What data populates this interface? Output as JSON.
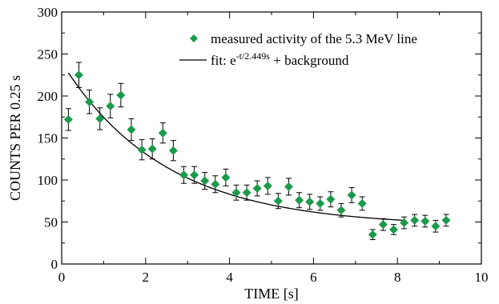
{
  "chart_data": {
    "type": "scatter",
    "xlabel": "TIME [s]",
    "ylabel": "COUNTS PER 0.25 s",
    "xlim": [
      0,
      10
    ],
    "ylim": [
      0,
      300
    ],
    "xticks": [
      0,
      2,
      4,
      6,
      8,
      10
    ],
    "yticks": [
      0,
      50,
      100,
      150,
      200,
      250,
      300
    ],
    "grid": false,
    "legend_position": "top-right",
    "marker_color": "#1a9a4a",
    "fit_color": "#000000",
    "series": [
      {
        "name": "measured activity of the 5.3 MeV line",
        "kind": "points-with-errorbars",
        "x": [
          0.16,
          0.41,
          0.66,
          0.91,
          1.16,
          1.41,
          1.66,
          1.91,
          2.16,
          2.41,
          2.66,
          2.91,
          3.16,
          3.41,
          3.66,
          3.91,
          4.16,
          4.41,
          4.66,
          4.91,
          5.16,
          5.41,
          5.66,
          5.91,
          6.16,
          6.41,
          6.66,
          6.91,
          7.16,
          7.41,
          7.66,
          7.91,
          8.16,
          8.41,
          8.66,
          8.91,
          9.16
        ],
        "y": [
          172,
          225,
          193,
          173,
          188,
          201,
          160,
          136,
          137,
          156,
          135,
          106,
          106,
          99,
          95,
          103,
          85,
          85,
          90,
          93,
          75,
          92,
          76,
          74,
          72,
          77,
          64,
          82,
          72,
          35,
          47,
          41,
          49,
          52,
          51,
          45,
          52
        ],
        "yerr": [
          13,
          15,
          14,
          13,
          14,
          14,
          13,
          12,
          12,
          12,
          12,
          10,
          10,
          10,
          10,
          10,
          9,
          9,
          9,
          10,
          9,
          10,
          9,
          9,
          8,
          9,
          8,
          9,
          8,
          6,
          7,
          6,
          7,
          7,
          7,
          7,
          7
        ]
      },
      {
        "name": "fit: e-t/2.449s + background",
        "name_parts": {
          "prefix": "fit: e",
          "superscript": "-t/2.449s",
          "suffix": " + background"
        },
        "kind": "line",
        "model": {
          "amplitude": 195,
          "tau": 2.449,
          "background": 45,
          "x_start": 0.16,
          "x_end": 8.2
        }
      }
    ]
  }
}
